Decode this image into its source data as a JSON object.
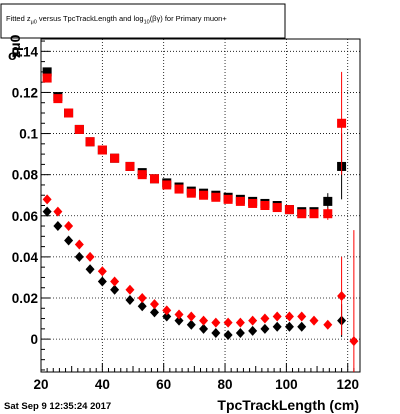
{
  "chart_data": {
    "type": "scatter",
    "title": "Fitted  zμ0 versus TpcTrackLength and log10(βγ) for Primary muon+",
    "title_parts": {
      "pre": "Fitted  z",
      "sub1": "μ0",
      "mid": " versus TpcTrackLength and log",
      "sub2": "10",
      "post": "(βγ) for Primary muon+"
    },
    "xlabel": "TpcTrackLength (cm)",
    "ylabel_main": "σ",
    "ylabel_sub": "zμ0",
    "xlim": [
      20,
      124
    ],
    "ylim": [
      -0.016,
      0.146
    ],
    "x_ticks": [
      20,
      40,
      60,
      80,
      100,
      120
    ],
    "x_tick_labels": [
      "20",
      "40",
      "60",
      "80",
      "100",
      "120"
    ],
    "y_ticks": [
      0,
      0.02,
      0.04,
      0.06,
      0.08,
      0.1,
      0.12,
      0.14
    ],
    "y_tick_labels": [
      "0",
      "0.02",
      "0.04",
      "0.06",
      "0.08",
      "0.1",
      "0.12",
      "0.14"
    ],
    "grid": true,
    "series": [
      {
        "marker": "square",
        "color": "#000000",
        "points": [
          {
            "x": 22,
            "y": 0.13,
            "err": 0.0015
          },
          {
            "x": 25.5,
            "y": 0.118,
            "err": 0.0012
          },
          {
            "x": 29,
            "y": 0.11,
            "err": 0.001
          },
          {
            "x": 32.5,
            "y": 0.102,
            "err": 0.001
          },
          {
            "x": 36,
            "y": 0.096,
            "err": 0.001
          },
          {
            "x": 40,
            "y": 0.092,
            "err": 0.0008
          },
          {
            "x": 44,
            "y": 0.088,
            "err": 0.0008
          },
          {
            "x": 49,
            "y": 0.084,
            "err": 0.0008
          },
          {
            "x": 53,
            "y": 0.081,
            "err": 0.0008
          },
          {
            "x": 57,
            "y": 0.078,
            "err": 0.0008
          },
          {
            "x": 61,
            "y": 0.076,
            "err": 0.0008
          },
          {
            "x": 65,
            "y": 0.074,
            "err": 0.0008
          },
          {
            "x": 69,
            "y": 0.072,
            "err": 0.0008
          },
          {
            "x": 73,
            "y": 0.071,
            "err": 0.0008
          },
          {
            "x": 77,
            "y": 0.07,
            "err": 0.0008
          },
          {
            "x": 81,
            "y": 0.069,
            "err": 0.0008
          },
          {
            "x": 85,
            "y": 0.068,
            "err": 0.0008
          },
          {
            "x": 89,
            "y": 0.067,
            "err": 0.0008
          },
          {
            "x": 93,
            "y": 0.066,
            "err": 0.0008
          },
          {
            "x": 97,
            "y": 0.065,
            "err": 0.0008
          },
          {
            "x": 101,
            "y": 0.063,
            "err": 0.001
          },
          {
            "x": 105,
            "y": 0.062,
            "err": 0.001
          },
          {
            "x": 109,
            "y": 0.062,
            "err": 0.0012
          },
          {
            "x": 113.5,
            "y": 0.067,
            "err": 0.004
          },
          {
            "x": 118,
            "y": 0.084,
            "err": 0.016
          }
        ]
      },
      {
        "marker": "square",
        "color": "#ff0000",
        "points": [
          {
            "x": 22,
            "y": 0.127,
            "err": 0.0015
          },
          {
            "x": 25.5,
            "y": 0.117,
            "err": 0.0012
          },
          {
            "x": 29,
            "y": 0.11,
            "err": 0.001
          },
          {
            "x": 32.5,
            "y": 0.102,
            "err": 0.001
          },
          {
            "x": 36,
            "y": 0.096,
            "err": 0.001
          },
          {
            "x": 40,
            "y": 0.092,
            "err": 0.0008
          },
          {
            "x": 44,
            "y": 0.088,
            "err": 0.0008
          },
          {
            "x": 49,
            "y": 0.084,
            "err": 0.0008
          },
          {
            "x": 53,
            "y": 0.08,
            "err": 0.0008
          },
          {
            "x": 57,
            "y": 0.078,
            "err": 0.0008
          },
          {
            "x": 61,
            "y": 0.075,
            "err": 0.0008
          },
          {
            "x": 65,
            "y": 0.073,
            "err": 0.0008
          },
          {
            "x": 69,
            "y": 0.071,
            "err": 0.0008
          },
          {
            "x": 73,
            "y": 0.07,
            "err": 0.0008
          },
          {
            "x": 77,
            "y": 0.069,
            "err": 0.0008
          },
          {
            "x": 81,
            "y": 0.068,
            "err": 0.0008
          },
          {
            "x": 85,
            "y": 0.067,
            "err": 0.0008
          },
          {
            "x": 89,
            "y": 0.066,
            "err": 0.0008
          },
          {
            "x": 93,
            "y": 0.065,
            "err": 0.0008
          },
          {
            "x": 97,
            "y": 0.064,
            "err": 0.0008
          },
          {
            "x": 101,
            "y": 0.063,
            "err": 0.001
          },
          {
            "x": 105,
            "y": 0.061,
            "err": 0.001
          },
          {
            "x": 109,
            "y": 0.061,
            "err": 0.0012
          },
          {
            "x": 113.5,
            "y": 0.061,
            "err": 0.003
          },
          {
            "x": 118,
            "y": 0.105,
            "err": 0.025
          }
        ]
      },
      {
        "marker": "diamond",
        "color": "#000000",
        "points": [
          {
            "x": 22,
            "y": 0.062,
            "err": 0.0008
          },
          {
            "x": 25.5,
            "y": 0.055,
            "err": 0.0008
          },
          {
            "x": 29,
            "y": 0.048,
            "err": 0.0008
          },
          {
            "x": 32.5,
            "y": 0.04,
            "err": 0.0008
          },
          {
            "x": 36,
            "y": 0.034,
            "err": 0.0008
          },
          {
            "x": 40,
            "y": 0.028,
            "err": 0.0008
          },
          {
            "x": 44,
            "y": 0.024,
            "err": 0.0008
          },
          {
            "x": 49,
            "y": 0.019,
            "err": 0.0008
          },
          {
            "x": 53,
            "y": 0.016,
            "err": 0.0008
          },
          {
            "x": 57,
            "y": 0.013,
            "err": 0.0008
          },
          {
            "x": 61,
            "y": 0.011,
            "err": 0.0008
          },
          {
            "x": 65,
            "y": 0.009,
            "err": 0.0008
          },
          {
            "x": 69,
            "y": 0.007,
            "err": 0.0008
          },
          {
            "x": 73,
            "y": 0.005,
            "err": 0.0008
          },
          {
            "x": 77,
            "y": 0.003,
            "err": 0.0008
          },
          {
            "x": 81,
            "y": 0.002,
            "err": 0.0008
          },
          {
            "x": 85,
            "y": 0.003,
            "err": 0.0008
          },
          {
            "x": 89,
            "y": 0.004,
            "err": 0.0008
          },
          {
            "x": 93,
            "y": 0.005,
            "err": 0.0008
          },
          {
            "x": 97,
            "y": 0.006,
            "err": 0.0008
          },
          {
            "x": 101,
            "y": 0.006,
            "err": 0.0008
          },
          {
            "x": 105,
            "y": 0.006,
            "err": 0.001
          },
          {
            "x": 118,
            "y": 0.009,
            "err": 0.008
          }
        ]
      },
      {
        "marker": "diamond",
        "color": "#ff0000",
        "points": [
          {
            "x": 22,
            "y": 0.068,
            "err": 0.0008
          },
          {
            "x": 25.5,
            "y": 0.062,
            "err": 0.0008
          },
          {
            "x": 29,
            "y": 0.055,
            "err": 0.0008
          },
          {
            "x": 32.5,
            "y": 0.046,
            "err": 0.0008
          },
          {
            "x": 36,
            "y": 0.04,
            "err": 0.0008
          },
          {
            "x": 40,
            "y": 0.033,
            "err": 0.0008
          },
          {
            "x": 44,
            "y": 0.028,
            "err": 0.0008
          },
          {
            "x": 49,
            "y": 0.024,
            "err": 0.0008
          },
          {
            "x": 53,
            "y": 0.02,
            "err": 0.0008
          },
          {
            "x": 57,
            "y": 0.017,
            "err": 0.0008
          },
          {
            "x": 61,
            "y": 0.014,
            "err": 0.0008
          },
          {
            "x": 65,
            "y": 0.012,
            "err": 0.0008
          },
          {
            "x": 69,
            "y": 0.011,
            "err": 0.0008
          },
          {
            "x": 73,
            "y": 0.009,
            "err": 0.0008
          },
          {
            "x": 77,
            "y": 0.008,
            "err": 0.0008
          },
          {
            "x": 81,
            "y": 0.008,
            "err": 0.0008
          },
          {
            "x": 85,
            "y": 0.008,
            "err": 0.0008
          },
          {
            "x": 89,
            "y": 0.009,
            "err": 0.0008
          },
          {
            "x": 93,
            "y": 0.01,
            "err": 0.0008
          },
          {
            "x": 97,
            "y": 0.011,
            "err": 0.0008
          },
          {
            "x": 101,
            "y": 0.011,
            "err": 0.0008
          },
          {
            "x": 105,
            "y": 0.011,
            "err": 0.001
          },
          {
            "x": 109,
            "y": 0.009,
            "err": 0.0012
          },
          {
            "x": 113.5,
            "y": 0.007,
            "err": 0.002
          },
          {
            "x": 118,
            "y": 0.021,
            "err": 0.019
          },
          {
            "x": 122,
            "y": -0.001,
            "err": 0.054
          }
        ]
      }
    ]
  },
  "footer": {
    "datestamp": "Sat Sep  9 12:35:24 2017"
  }
}
